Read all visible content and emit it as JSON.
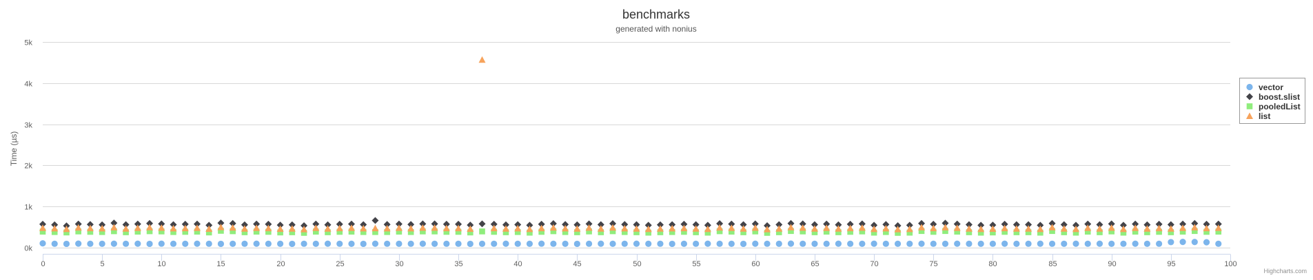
{
  "chart_data": {
    "type": "scatter",
    "title": "benchmarks",
    "subtitle": "generated with nonius",
    "xlabel": "",
    "ylabel": "Time (µs)",
    "xlim": [
      0,
      100
    ],
    "ylim": [
      0,
      5000
    ],
    "x_ticks": [
      0,
      5,
      10,
      15,
      20,
      25,
      30,
      35,
      40,
      45,
      50,
      55,
      60,
      65,
      70,
      75,
      80,
      85,
      90,
      95,
      100
    ],
    "y_ticks": [
      0,
      1000,
      2000,
      3000,
      4000,
      5000
    ],
    "y_tick_labels": [
      "0k",
      "1k",
      "2k",
      "3k",
      "4k",
      "5k"
    ],
    "grid": "horizontal",
    "legend_position": "right",
    "credits": "Highcharts.com",
    "series": [
      {
        "name": "vector",
        "marker": "circle",
        "color": "#7cb5ec",
        "values": [
          105,
          95,
          93,
          98,
          95,
          94,
          96,
          95,
          96,
          93,
          97,
          95,
          94,
          96,
          95,
          93,
          94,
          95,
          96,
          95,
          94,
          93,
          95,
          94,
          96,
          95,
          94,
          93,
          96,
          95,
          94,
          95,
          96,
          94,
          95,
          95,
          93,
          94,
          95,
          96,
          95,
          94,
          97,
          95,
          94,
          93,
          95,
          96,
          94,
          95,
          96,
          94,
          95,
          93,
          94,
          95,
          96,
          95,
          94,
          93,
          96,
          95,
          94,
          98,
          95,
          94,
          95,
          96,
          95,
          94,
          96,
          95,
          94,
          95,
          96,
          95,
          94,
          96,
          95,
          94,
          95,
          96,
          94,
          95,
          96,
          95,
          94,
          96,
          95,
          96,
          94,
          95,
          96,
          94,
          95,
          135,
          140,
          138,
          132,
          95
        ]
      },
      {
        "name": "boost.slist",
        "marker": "diamond",
        "color": "#434348",
        "values": [
          570,
          555,
          530,
          575,
          565,
          555,
          600,
          560,
          575,
          590,
          580,
          560,
          570,
          575,
          545,
          600,
          590,
          555,
          575,
          570,
          550,
          555,
          535,
          575,
          555,
          570,
          575,
          560,
          660,
          565,
          575,
          565,
          580,
          580,
          570,
          570,
          550,
          580,
          570,
          555,
          560,
          545,
          570,
          585,
          565,
          555,
          580,
          560,
          585,
          565,
          560,
          545,
          555,
          560,
          570,
          560,
          545,
          585,
          575,
          560,
          580,
          535,
          560,
          590,
          580,
          560,
          575,
          555,
          570,
          580,
          545,
          565,
          535,
          545,
          590,
          570,
          595,
          575,
          560,
          545,
          550,
          570,
          560,
          560,
          545,
          590,
          560,
          545,
          575,
          560,
          580,
          545,
          575,
          555,
          570,
          560,
          575,
          590,
          570,
          575
        ]
      },
      {
        "name": "pooledList",
        "marker": "square",
        "color": "#90ed7d",
        "values": [
          390,
          380,
          370,
          395,
          385,
          380,
          400,
          375,
          390,
          400,
          395,
          380,
          385,
          390,
          370,
          410,
          400,
          375,
          390,
          385,
          370,
          375,
          360,
          390,
          375,
          385,
          390,
          380,
          380,
          380,
          390,
          380,
          395,
          395,
          385,
          385,
          370,
          395,
          385,
          375,
          380,
          365,
          385,
          400,
          380,
          375,
          395,
          375,
          400,
          380,
          375,
          365,
          375,
          380,
          385,
          375,
          365,
          400,
          390,
          375,
          395,
          360,
          375,
          405,
          395,
          375,
          390,
          375,
          385,
          395,
          365,
          380,
          360,
          365,
          405,
          385,
          405,
          390,
          375,
          365,
          370,
          385,
          375,
          375,
          365,
          405,
          375,
          365,
          390,
          375,
          395,
          365,
          390,
          375,
          385,
          375,
          390,
          405,
          385,
          390
        ]
      },
      {
        "name": "list",
        "marker": "triangle",
        "color": "#f7a35c",
        "values": [
          480,
          470,
          455,
          490,
          475,
          470,
          495,
          465,
          480,
          495,
          485,
          470,
          475,
          480,
          460,
          500,
          490,
          465,
          480,
          475,
          460,
          465,
          450,
          480,
          465,
          475,
          480,
          470,
          475,
          470,
          480,
          470,
          485,
          485,
          475,
          475,
          460,
          4570,
          475,
          465,
          470,
          455,
          475,
          490,
          470,
          465,
          485,
          465,
          490,
          470,
          465,
          455,
          465,
          470,
          475,
          465,
          455,
          490,
          480,
          465,
          485,
          450,
          465,
          495,
          485,
          465,
          480,
          465,
          475,
          485,
          455,
          470,
          450,
          455,
          495,
          475,
          495,
          480,
          465,
          455,
          460,
          475,
          465,
          465,
          455,
          495,
          465,
          455,
          480,
          465,
          485,
          455,
          480,
          465,
          475,
          465,
          480,
          495,
          475,
          480
        ]
      }
    ]
  }
}
